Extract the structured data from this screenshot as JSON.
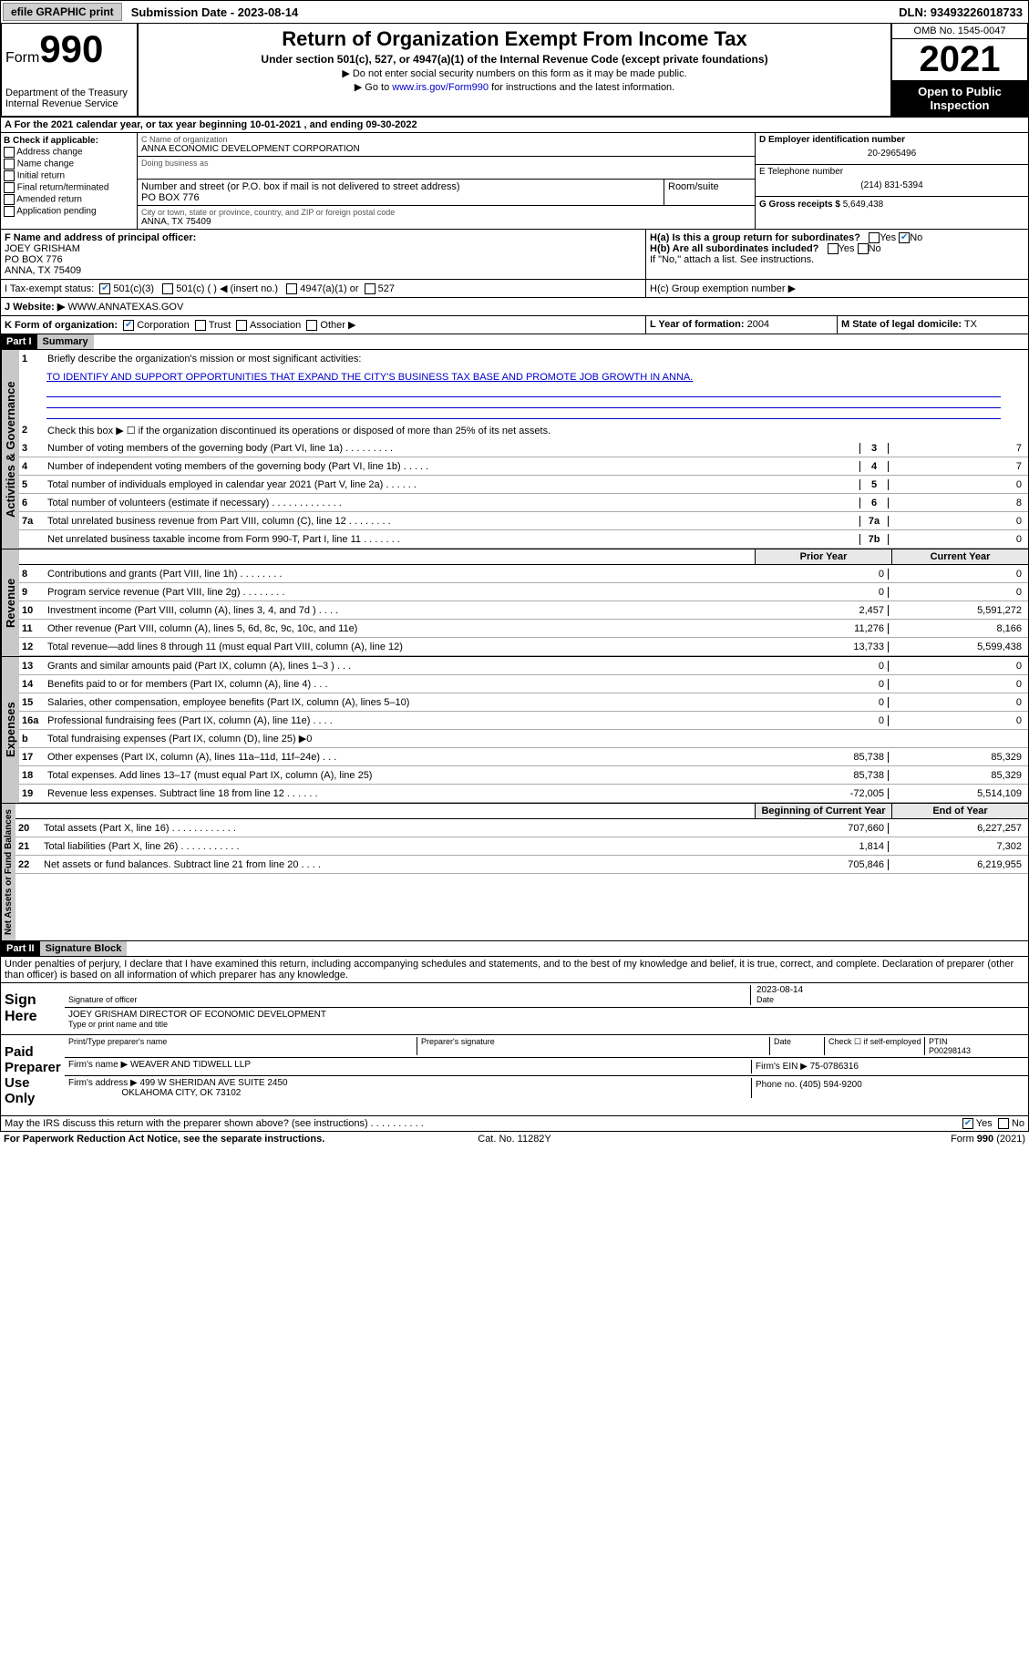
{
  "colors": {
    "link": "#0000cc",
    "shade": "#c8c8c8",
    "black": "#000000",
    "chkblue": "#1976d2"
  },
  "topbar": {
    "efile": "efile GRAPHIC print",
    "submission": "Submission Date - 2023-08-14",
    "dln": "DLN: 93493226018733"
  },
  "header": {
    "form_prefix": "Form",
    "form_num": "990",
    "dept": "Department of the Treasury\nInternal Revenue Service",
    "title": "Return of Organization Exempt From Income Tax",
    "subtitle": "Under section 501(c), 527, or 4947(a)(1) of the Internal Revenue Code (except private foundations)",
    "note1": "▶ Do not enter social security numbers on this form as it may be made public.",
    "note2_pre": "▶ Go to ",
    "note2_link": "www.irs.gov/Form990",
    "note2_post": " for instructions and the latest information.",
    "omb": "OMB No. 1545-0047",
    "year": "2021",
    "opi": "Open to Public Inspection"
  },
  "rowA": "A For the 2021 calendar year, or tax year beginning 10-01-2021 , and ending 09-30-2022",
  "sectionB": {
    "label": "B Check if applicable:",
    "opts": [
      "Address change",
      "Name change",
      "Initial return",
      "Final return/terminated",
      "Amended return",
      "Application pending"
    ]
  },
  "sectionC": {
    "name_lbl": "C Name of organization",
    "name": "ANNA ECONOMIC DEVELOPMENT CORPORATION",
    "dba_lbl": "Doing business as",
    "addr_lbl": "Number and street (or P.O. box if mail is not delivered to street address)",
    "room_lbl": "Room/suite",
    "addr": "PO BOX 776",
    "city_lbl": "City or town, state or province, country, and ZIP or foreign postal code",
    "city": "ANNA, TX  75409"
  },
  "sectionD": {
    "lbl": "D Employer identification number",
    "val": "20-2965496"
  },
  "sectionE": {
    "lbl": "E Telephone number",
    "val": "(214) 831-5394"
  },
  "sectionG": {
    "lbl": "G Gross receipts $",
    "val": "5,649,438"
  },
  "sectionF": {
    "lbl": "F Name and address of principal officer:",
    "name": "JOEY GRISHAM",
    "addr1": "PO BOX 776",
    "addr2": "ANNA, TX  75409"
  },
  "sectionH": {
    "ha": "H(a)  Is this a group return for subordinates?",
    "ha_yes": "Yes",
    "ha_no": "No",
    "hb": "H(b)  Are all subordinates included?",
    "hb_note": "If \"No,\" attach a list. See instructions.",
    "hc": "H(c)  Group exemption number ▶"
  },
  "rowI": {
    "lbl": "I   Tax-exempt status:",
    "o1": "501(c)(3)",
    "o2": "501(c) (  ) ◀ (insert no.)",
    "o3": "4947(a)(1) or",
    "o4": "527"
  },
  "rowJ": {
    "lbl": "J   Website: ▶",
    "val": "WWW.ANNATEXAS.GOV"
  },
  "rowK": {
    "lbl": "K Form of organization:",
    "o1": "Corporation",
    "o2": "Trust",
    "o3": "Association",
    "o4": "Other ▶"
  },
  "rowL": {
    "lbl": "L Year of formation:",
    "val": "2004"
  },
  "rowM": {
    "lbl": "M State of legal domicile:",
    "val": "TX"
  },
  "part1": {
    "hdr": "Part I",
    "title": "Summary"
  },
  "summary": {
    "l1_lbl": "Briefly describe the organization's mission or most significant activities:",
    "l1_val": "TO IDENTIFY AND SUPPORT OPPORTUNITIES THAT EXPAND THE CITY'S BUSINESS TAX BASE AND PROMOTE JOB GROWTH IN ANNA.",
    "l2": "Check this box ▶ ☐ if the organization discontinued its operations or disposed of more than 25% of its net assets.",
    "rows_simple": [
      {
        "n": "3",
        "d": "Number of voting members of the governing body (Part VI, line 1a)  .   .   .   .   .   .   .   .   .",
        "k": "3",
        "v": "7"
      },
      {
        "n": "4",
        "d": "Number of independent voting members of the governing body (Part VI, line 1b)  .   .   .   .   .",
        "k": "4",
        "v": "7"
      },
      {
        "n": "5",
        "d": "Total number of individuals employed in calendar year 2021 (Part V, line 2a)  .   .   .   .   .   .",
        "k": "5",
        "v": "0"
      },
      {
        "n": "6",
        "d": "Total number of volunteers (estimate if necessary)  .   .   .   .   .   .   .   .   .   .   .   .   .",
        "k": "6",
        "v": "8"
      },
      {
        "n": "7a",
        "d": "Total unrelated business revenue from Part VIII, column (C), line 12  .   .   .   .   .   .   .   .",
        "k": "7a",
        "v": "0"
      },
      {
        "n": "",
        "d": "Net unrelated business taxable income from Form 990-T, Part I, line 11  .   .   .   .   .   .   .",
        "k": "7b",
        "v": "0"
      }
    ],
    "col_hdr1": "Prior Year",
    "col_hdr2": "Current Year",
    "rev_rows": [
      {
        "n": "8",
        "d": "Contributions and grants (Part VIII, line 1h)  .   .   .   .   .   .   .   .",
        "p": "0",
        "c": "0"
      },
      {
        "n": "9",
        "d": "Program service revenue (Part VIII, line 2g)  .   .   .   .   .   .   .   .",
        "p": "0",
        "c": "0"
      },
      {
        "n": "10",
        "d": "Investment income (Part VIII, column (A), lines 3, 4, and 7d )  .   .   .   .",
        "p": "2,457",
        "c": "5,591,272"
      },
      {
        "n": "11",
        "d": "Other revenue (Part VIII, column (A), lines 5, 6d, 8c, 9c, 10c, and 11e)",
        "p": "11,276",
        "c": "8,166"
      },
      {
        "n": "12",
        "d": "Total revenue—add lines 8 through 11 (must equal Part VIII, column (A), line 12)",
        "p": "13,733",
        "c": "5,599,438"
      }
    ],
    "exp_rows": [
      {
        "n": "13",
        "d": "Grants and similar amounts paid (Part IX, column (A), lines 1–3 )  .   .   .",
        "p": "0",
        "c": "0"
      },
      {
        "n": "14",
        "d": "Benefits paid to or for members (Part IX, column (A), line 4)  .   .   .",
        "p": "0",
        "c": "0"
      },
      {
        "n": "15",
        "d": "Salaries, other compensation, employee benefits (Part IX, column (A), lines 5–10)",
        "p": "0",
        "c": "0"
      },
      {
        "n": "16a",
        "d": "Professional fundraising fees (Part IX, column (A), line 11e)  .   .   .   .",
        "p": "0",
        "c": "0"
      },
      {
        "n": "b",
        "d": "Total fundraising expenses (Part IX, column (D), line 25) ▶0",
        "p": "",
        "c": "",
        "shade": true
      },
      {
        "n": "17",
        "d": "Other expenses (Part IX, column (A), lines 11a–11d, 11f–24e)  .   .   .",
        "p": "85,738",
        "c": "85,329"
      },
      {
        "n": "18",
        "d": "Total expenses. Add lines 13–17 (must equal Part IX, column (A), line 25)",
        "p": "85,738",
        "c": "85,329"
      },
      {
        "n": "19",
        "d": "Revenue less expenses. Subtract line 18 from line 12  .   .   .   .   .   .",
        "p": "-72,005",
        "c": "5,514,109"
      }
    ],
    "net_hdr1": "Beginning of Current Year",
    "net_hdr2": "End of Year",
    "net_rows": [
      {
        "n": "20",
        "d": "Total assets (Part X, line 16)  .   .   .   .   .   .   .   .   .   .   .   .",
        "p": "707,660",
        "c": "6,227,257"
      },
      {
        "n": "21",
        "d": "Total liabilities (Part X, line 26)  .   .   .   .   .   .   .   .   .   .   .",
        "p": "1,814",
        "c": "7,302"
      },
      {
        "n": "22",
        "d": "Net assets or fund balances. Subtract line 21 from line 20  .   .   .   .",
        "p": "705,846",
        "c": "6,219,955"
      }
    ]
  },
  "vlabels": {
    "act": "Activities & Governance",
    "rev": "Revenue",
    "exp": "Expenses",
    "net": "Net Assets or Fund Balances"
  },
  "part2": {
    "hdr": "Part II",
    "title": "Signature Block"
  },
  "perjury": "Under penalties of perjury, I declare that I have examined this return, including accompanying schedules and statements, and to the best of my knowledge and belief, it is true, correct, and complete. Declaration of preparer (other than officer) is based on all information of which preparer has any knowledge.",
  "sign": {
    "here": "Sign Here",
    "sig_officer": "Signature of officer",
    "date_lbl": "Date",
    "date": "2023-08-14",
    "name": "JOEY GRISHAM  DIRECTOR OF ECONOMIC DEVELOPMENT",
    "name_lbl": "Type or print name and title"
  },
  "paid": {
    "lbl": "Paid Preparer Use Only",
    "h1": "Print/Type preparer's name",
    "h2": "Preparer's signature",
    "h3": "Date",
    "check_lbl": "Check ☐ if self-employed",
    "ptin_lbl": "PTIN",
    "ptin": "P00298143",
    "firm_name_lbl": "Firm's name   ▶",
    "firm_name": "WEAVER AND TIDWELL LLP",
    "firm_ein_lbl": "Firm's EIN ▶",
    "firm_ein": "75-0786316",
    "firm_addr_lbl": "Firm's address ▶",
    "firm_addr1": "499 W SHERIDAN AVE SUITE 2450",
    "firm_addr2": "OKLAHOMA CITY, OK  73102",
    "phone_lbl": "Phone no.",
    "phone": "(405) 594-9200"
  },
  "bottom": {
    "discuss": "May the IRS discuss this return with the preparer shown above? (see instructions)  .   .   .   .   .   .   .   .   .   .",
    "yes": "Yes",
    "no": "No",
    "pra": "For Paperwork Reduction Act Notice, see the separate instructions.",
    "cat": "Cat. No. 11282Y",
    "form": "Form 990 (2021)"
  }
}
